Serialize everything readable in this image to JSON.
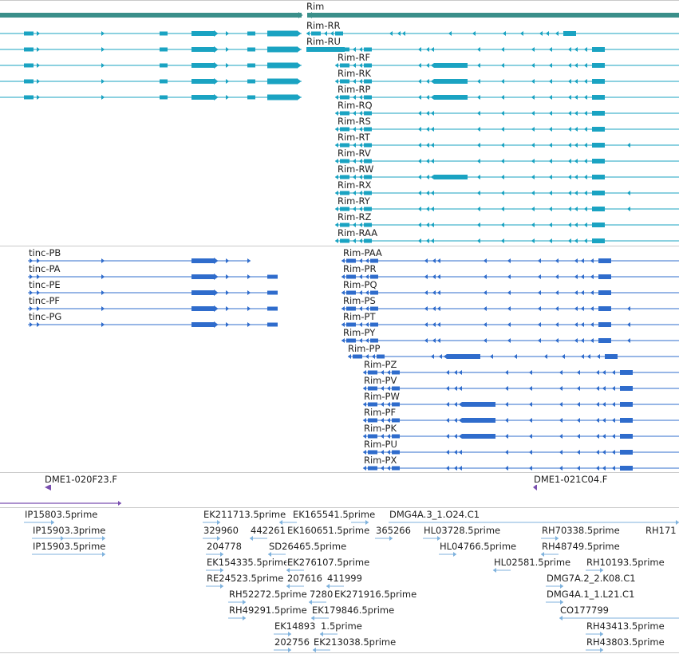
{
  "colors": {
    "gene": "#3a8f8a",
    "rna": "#1aa3c2",
    "protein": "#2f6ccc",
    "clone": "#7a4fb0",
    "est": "#7fb2dd",
    "border": "#c9c9c9",
    "text": "#1f1f1f"
  },
  "gene_track": {
    "labels": [
      "Rim"
    ]
  },
  "rna_track": {
    "labels": [
      "Rim-RR",
      "Rim-RU",
      "Rim-RF",
      "Rim-RK",
      "Rim-RP",
      "Rim-RQ",
      "Rim-RS",
      "Rim-RT",
      "Rim-RV",
      "Rim-RW",
      "Rim-RX",
      "Rim-RY",
      "Rim-RZ",
      "Rim-RAA"
    ]
  },
  "protein_track": {
    "labels": [
      "tinc-PB",
      "tinc-PA",
      "tinc-PE",
      "tinc-PF",
      "tinc-PG",
      "Rim-PAA",
      "Rim-PR",
      "Rim-PQ",
      "Rim-PS",
      "Rim-PT",
      "Rim-PY",
      "Rim-PP",
      "Rim-PZ",
      "Rim-PV",
      "Rim-PW",
      "Rim-PF",
      "Rim-PK",
      "Rim-PU",
      "Rim-PX"
    ]
  },
  "clone_track": {
    "labels": [
      "DME1-020F23.F",
      "DME1-021C04.F"
    ]
  },
  "est_track": {
    "labels": [
      "IP15803.5prime",
      "IP15903.3prime",
      "IP15903.5prime",
      "EK211713.5prime",
      "EK165541.5prime",
      "DMG4A.3_1.O24.C1",
      "329960",
      "442261",
      "EK160651.5prime",
      "365266",
      "HL03728.5prime",
      "RH70338.5prime",
      "RH171",
      "204778",
      "SD26465.5prime",
      "HL04766.5prime",
      "RH48749.5prime",
      "EK154335.5prime",
      "EK276107.5prime",
      "HL02581.5prime",
      "RH10193.5prime",
      "RE24523.5prime",
      "207616",
      "411999",
      "DMG7A.2_2.K08.C1",
      "RH52272.5prime",
      "7280",
      "EK271916.5prime",
      "DMG4A.1_1.L21.C1",
      "RH49291.5prime",
      "EK179846.5prime",
      "CO177799",
      "EK14893",
      "1.5prime",
      "RH43413.5prime",
      "202756",
      "EK213038.5prime",
      "RH43803.5prime"
    ]
  }
}
